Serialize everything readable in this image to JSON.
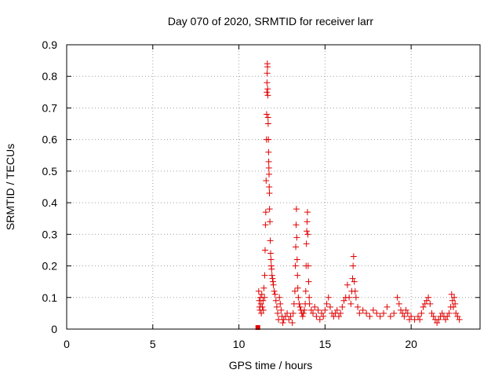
{
  "chart_data": {
    "type": "scatter",
    "title": "Day 070 of 2020, SRMTID for receiver larr",
    "xlabel": "GPS time / hours",
    "ylabel": "SRMTID / TECUs",
    "xlim": [
      0,
      24
    ],
    "ylim": [
      0,
      0.9
    ],
    "xticks": [
      0,
      5,
      10,
      15,
      20
    ],
    "yticks": [
      0,
      0.1,
      0.2,
      0.3,
      0.4,
      0.5,
      0.6,
      0.7,
      0.8,
      0.9
    ],
    "ytick_labels": [
      "0",
      "0.1",
      "0.2",
      "0.3",
      "0.4",
      "0.5",
      "0.6",
      "0.7",
      "0.8",
      "0.9"
    ],
    "grid": true,
    "marker": "plus",
    "color": "#e00000",
    "series": [
      {
        "name": "larr",
        "points": [
          [
            11.1,
            0.005
          ],
          [
            11.15,
            0.12
          ],
          [
            11.18,
            0.09
          ],
          [
            11.2,
            0.07
          ],
          [
            11.22,
            0.06
          ],
          [
            11.25,
            0.1
          ],
          [
            11.28,
            0.08
          ],
          [
            11.3,
            0.05
          ],
          [
            11.33,
            0.11
          ],
          [
            11.36,
            0.07
          ],
          [
            11.4,
            0.09
          ],
          [
            11.42,
            0.06
          ],
          [
            11.45,
            0.13
          ],
          [
            11.48,
            0.1
          ],
          [
            11.5,
            0.17
          ],
          [
            11.52,
            0.25
          ],
          [
            11.54,
            0.33
          ],
          [
            11.56,
            0.37
          ],
          [
            11.58,
            0.47
          ],
          [
            11.6,
            0.6
          ],
          [
            11.61,
            0.68
          ],
          [
            11.62,
            0.75
          ],
          [
            11.63,
            0.78
          ],
          [
            11.64,
            0.81
          ],
          [
            11.65,
            0.84
          ],
          [
            11.66,
            0.83
          ],
          [
            11.67,
            0.76
          ],
          [
            11.68,
            0.74
          ],
          [
            11.69,
            0.67
          ],
          [
            11.7,
            0.65
          ],
          [
            11.71,
            0.6
          ],
          [
            11.72,
            0.56
          ],
          [
            11.73,
            0.53
          ],
          [
            11.74,
            0.51
          ],
          [
            11.75,
            0.49
          ],
          [
            11.76,
            0.45
          ],
          [
            11.77,
            0.43
          ],
          [
            11.78,
            0.38
          ],
          [
            11.8,
            0.34
          ],
          [
            11.82,
            0.28
          ],
          [
            11.84,
            0.24
          ],
          [
            11.86,
            0.22
          ],
          [
            11.88,
            0.2
          ],
          [
            11.9,
            0.19
          ],
          [
            11.92,
            0.17
          ],
          [
            11.95,
            0.16
          ],
          [
            11.98,
            0.15
          ],
          [
            12.0,
            0.14
          ],
          [
            12.05,
            0.12
          ],
          [
            12.1,
            0.11
          ],
          [
            12.15,
            0.09
          ],
          [
            12.2,
            0.07
          ],
          [
            12.25,
            0.05
          ],
          [
            12.3,
            0.03
          ],
          [
            12.35,
            0.1
          ],
          [
            12.4,
            0.08
          ],
          [
            12.45,
            0.06
          ],
          [
            12.5,
            0.04
          ],
          [
            12.55,
            0.02
          ],
          [
            12.6,
            0.03
          ],
          [
            12.7,
            0.04
          ],
          [
            12.8,
            0.05
          ],
          [
            12.9,
            0.03
          ],
          [
            13.0,
            0.04
          ],
          [
            13.1,
            0.02
          ],
          [
            13.15,
            0.05
          ],
          [
            13.2,
            0.08
          ],
          [
            13.25,
            0.12
          ],
          [
            13.28,
            0.2
          ],
          [
            13.3,
            0.26
          ],
          [
            13.32,
            0.33
          ],
          [
            13.34,
            0.38
          ],
          [
            13.36,
            0.29
          ],
          [
            13.38,
            0.22
          ],
          [
            13.4,
            0.17
          ],
          [
            13.42,
            0.13
          ],
          [
            13.45,
            0.1
          ],
          [
            13.5,
            0.08
          ],
          [
            13.55,
            0.07
          ],
          [
            13.6,
            0.06
          ],
          [
            13.65,
            0.05
          ],
          [
            13.7,
            0.04
          ],
          [
            13.75,
            0.05
          ],
          [
            13.8,
            0.06
          ],
          [
            13.85,
            0.08
          ],
          [
            13.88,
            0.12
          ],
          [
            13.9,
            0.2
          ],
          [
            13.92,
            0.27
          ],
          [
            13.94,
            0.31
          ],
          [
            13.96,
            0.34
          ],
          [
            13.98,
            0.37
          ],
          [
            14.0,
            0.3
          ],
          [
            14.02,
            0.2
          ],
          [
            14.05,
            0.15
          ],
          [
            14.08,
            0.1
          ],
          [
            14.1,
            0.08
          ],
          [
            14.2,
            0.06
          ],
          [
            14.3,
            0.05
          ],
          [
            14.4,
            0.07
          ],
          [
            14.5,
            0.04
          ],
          [
            14.6,
            0.06
          ],
          [
            14.7,
            0.03
          ],
          [
            14.8,
            0.05
          ],
          [
            14.9,
            0.04
          ],
          [
            15.0,
            0.06
          ],
          [
            15.1,
            0.08
          ],
          [
            15.2,
            0.1
          ],
          [
            15.3,
            0.07
          ],
          [
            15.4,
            0.05
          ],
          [
            15.5,
            0.04
          ],
          [
            15.6,
            0.05
          ],
          [
            15.7,
            0.06
          ],
          [
            15.8,
            0.04
          ],
          [
            15.9,
            0.05
          ],
          [
            16.0,
            0.07
          ],
          [
            16.1,
            0.09
          ],
          [
            16.2,
            0.1
          ],
          [
            16.3,
            0.14
          ],
          [
            16.4,
            0.1
          ],
          [
            16.5,
            0.08
          ],
          [
            16.55,
            0.12
          ],
          [
            16.6,
            0.16
          ],
          [
            16.63,
            0.2
          ],
          [
            16.66,
            0.23
          ],
          [
            16.7,
            0.15
          ],
          [
            16.75,
            0.12
          ],
          [
            16.8,
            0.1
          ],
          [
            16.9,
            0.07
          ],
          [
            17.0,
            0.05
          ],
          [
            17.2,
            0.06
          ],
          [
            17.4,
            0.05
          ],
          [
            17.6,
            0.04
          ],
          [
            17.8,
            0.06
          ],
          [
            18.0,
            0.05
          ],
          [
            18.2,
            0.04
          ],
          [
            18.4,
            0.05
          ],
          [
            18.6,
            0.07
          ],
          [
            18.8,
            0.04
          ],
          [
            19.0,
            0.05
          ],
          [
            19.2,
            0.1
          ],
          [
            19.3,
            0.08
          ],
          [
            19.4,
            0.06
          ],
          [
            19.5,
            0.05
          ],
          [
            19.6,
            0.04
          ],
          [
            19.7,
            0.06
          ],
          [
            19.8,
            0.05
          ],
          [
            19.9,
            0.03
          ],
          [
            20.0,
            0.04
          ],
          [
            20.2,
            0.03
          ],
          [
            20.4,
            0.04
          ],
          [
            20.5,
            0.03
          ],
          [
            20.6,
            0.05
          ],
          [
            20.7,
            0.07
          ],
          [
            20.8,
            0.08
          ],
          [
            20.9,
            0.09
          ],
          [
            21.0,
            0.1
          ],
          [
            21.1,
            0.08
          ],
          [
            21.2,
            0.05
          ],
          [
            21.3,
            0.04
          ],
          [
            21.4,
            0.03
          ],
          [
            21.5,
            0.02
          ],
          [
            21.6,
            0.03
          ],
          [
            21.7,
            0.04
          ],
          [
            21.8,
            0.05
          ],
          [
            21.9,
            0.04
          ],
          [
            22.0,
            0.03
          ],
          [
            22.1,
            0.04
          ],
          [
            22.2,
            0.05
          ],
          [
            22.3,
            0.07
          ],
          [
            22.35,
            0.11
          ],
          [
            22.4,
            0.09
          ],
          [
            22.45,
            0.07
          ],
          [
            22.5,
            0.1
          ],
          [
            22.55,
            0.08
          ],
          [
            22.6,
            0.05
          ],
          [
            22.7,
            0.04
          ],
          [
            22.8,
            0.03
          ]
        ]
      }
    ]
  }
}
